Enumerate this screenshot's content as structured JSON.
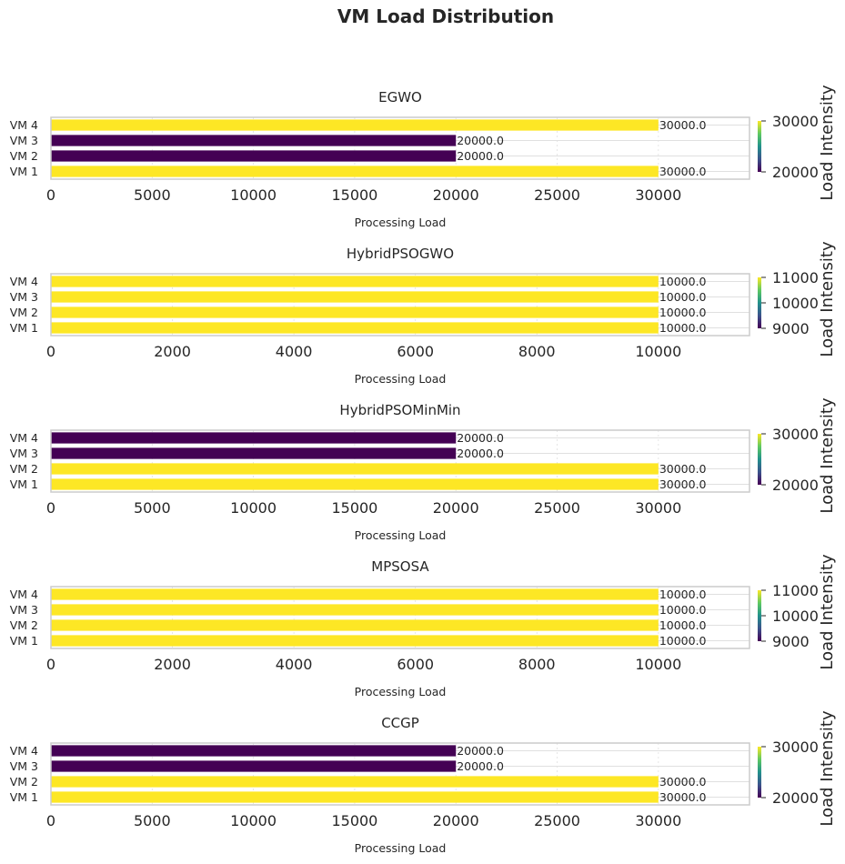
{
  "suptitle": "VM Load Distribution",
  "colors": {
    "low": "#440154",
    "high": "#fde725",
    "grid": "#e0e0e0",
    "frame": "#cccccc",
    "text": "#262626"
  },
  "chart_data": [
    {
      "type": "bar",
      "orientation": "horizontal",
      "title": "EGWO",
      "categories": [
        "VM 1",
        "VM 2",
        "VM 3",
        "VM 4"
      ],
      "values": [
        30000,
        20000,
        20000,
        30000
      ],
      "value_labels": [
        "30000.0",
        "20000.0",
        "20000.0",
        "30000.0"
      ],
      "xlabel": "Processing Load",
      "xlim": [
        0,
        34500
      ],
      "xticks": [
        0,
        5000,
        10000,
        15000,
        20000,
        25000,
        30000
      ],
      "colorbar": {
        "label": "Load Intensity",
        "range": [
          20000,
          30000
        ],
        "ticks": [
          20000,
          30000
        ]
      }
    },
    {
      "type": "bar",
      "orientation": "horizontal",
      "title": "HybridPSOGWO",
      "categories": [
        "VM 1",
        "VM 2",
        "VM 3",
        "VM 4"
      ],
      "values": [
        10000,
        10000,
        10000,
        10000
      ],
      "value_labels": [
        "10000.0",
        "10000.0",
        "10000.0",
        "10000.0"
      ],
      "xlabel": "Processing Load",
      "xlim": [
        0,
        11500
      ],
      "xticks": [
        0,
        2000,
        4000,
        6000,
        8000,
        10000
      ],
      "colorbar": {
        "label": "Load Intensity",
        "range": [
          9000,
          11000
        ],
        "ticks": [
          9000,
          10000,
          11000
        ]
      }
    },
    {
      "type": "bar",
      "orientation": "horizontal",
      "title": "HybridPSOMinMin",
      "categories": [
        "VM 1",
        "VM 2",
        "VM 3",
        "VM 4"
      ],
      "values": [
        30000,
        30000,
        20000,
        20000
      ],
      "value_labels": [
        "30000.0",
        "30000.0",
        "20000.0",
        "20000.0"
      ],
      "xlabel": "Processing Load",
      "xlim": [
        0,
        34500
      ],
      "xticks": [
        0,
        5000,
        10000,
        15000,
        20000,
        25000,
        30000
      ],
      "colorbar": {
        "label": "Load Intensity",
        "range": [
          20000,
          30000
        ],
        "ticks": [
          20000,
          30000
        ]
      }
    },
    {
      "type": "bar",
      "orientation": "horizontal",
      "title": "MPSOSA",
      "categories": [
        "VM 1",
        "VM 2",
        "VM 3",
        "VM 4"
      ],
      "values": [
        10000,
        10000,
        10000,
        10000
      ],
      "value_labels": [
        "10000.0",
        "10000.0",
        "10000.0",
        "10000.0"
      ],
      "xlabel": "Processing Load",
      "xlim": [
        0,
        11500
      ],
      "xticks": [
        0,
        2000,
        4000,
        6000,
        8000,
        10000
      ],
      "colorbar": {
        "label": "Load Intensity",
        "range": [
          9000,
          11000
        ],
        "ticks": [
          9000,
          10000,
          11000
        ]
      }
    },
    {
      "type": "bar",
      "orientation": "horizontal",
      "title": "CCGP",
      "categories": [
        "VM 1",
        "VM 2",
        "VM 3",
        "VM 4"
      ],
      "values": [
        30000,
        30000,
        20000,
        20000
      ],
      "value_labels": [
        "30000.0",
        "30000.0",
        "20000.0",
        "20000.0"
      ],
      "xlabel": "Processing Load",
      "xlim": [
        0,
        34500
      ],
      "xticks": [
        0,
        5000,
        10000,
        15000,
        20000,
        25000,
        30000
      ],
      "colorbar": {
        "label": "Load Intensity",
        "range": [
          20000,
          30000
        ],
        "ticks": [
          20000,
          30000
        ]
      }
    }
  ]
}
